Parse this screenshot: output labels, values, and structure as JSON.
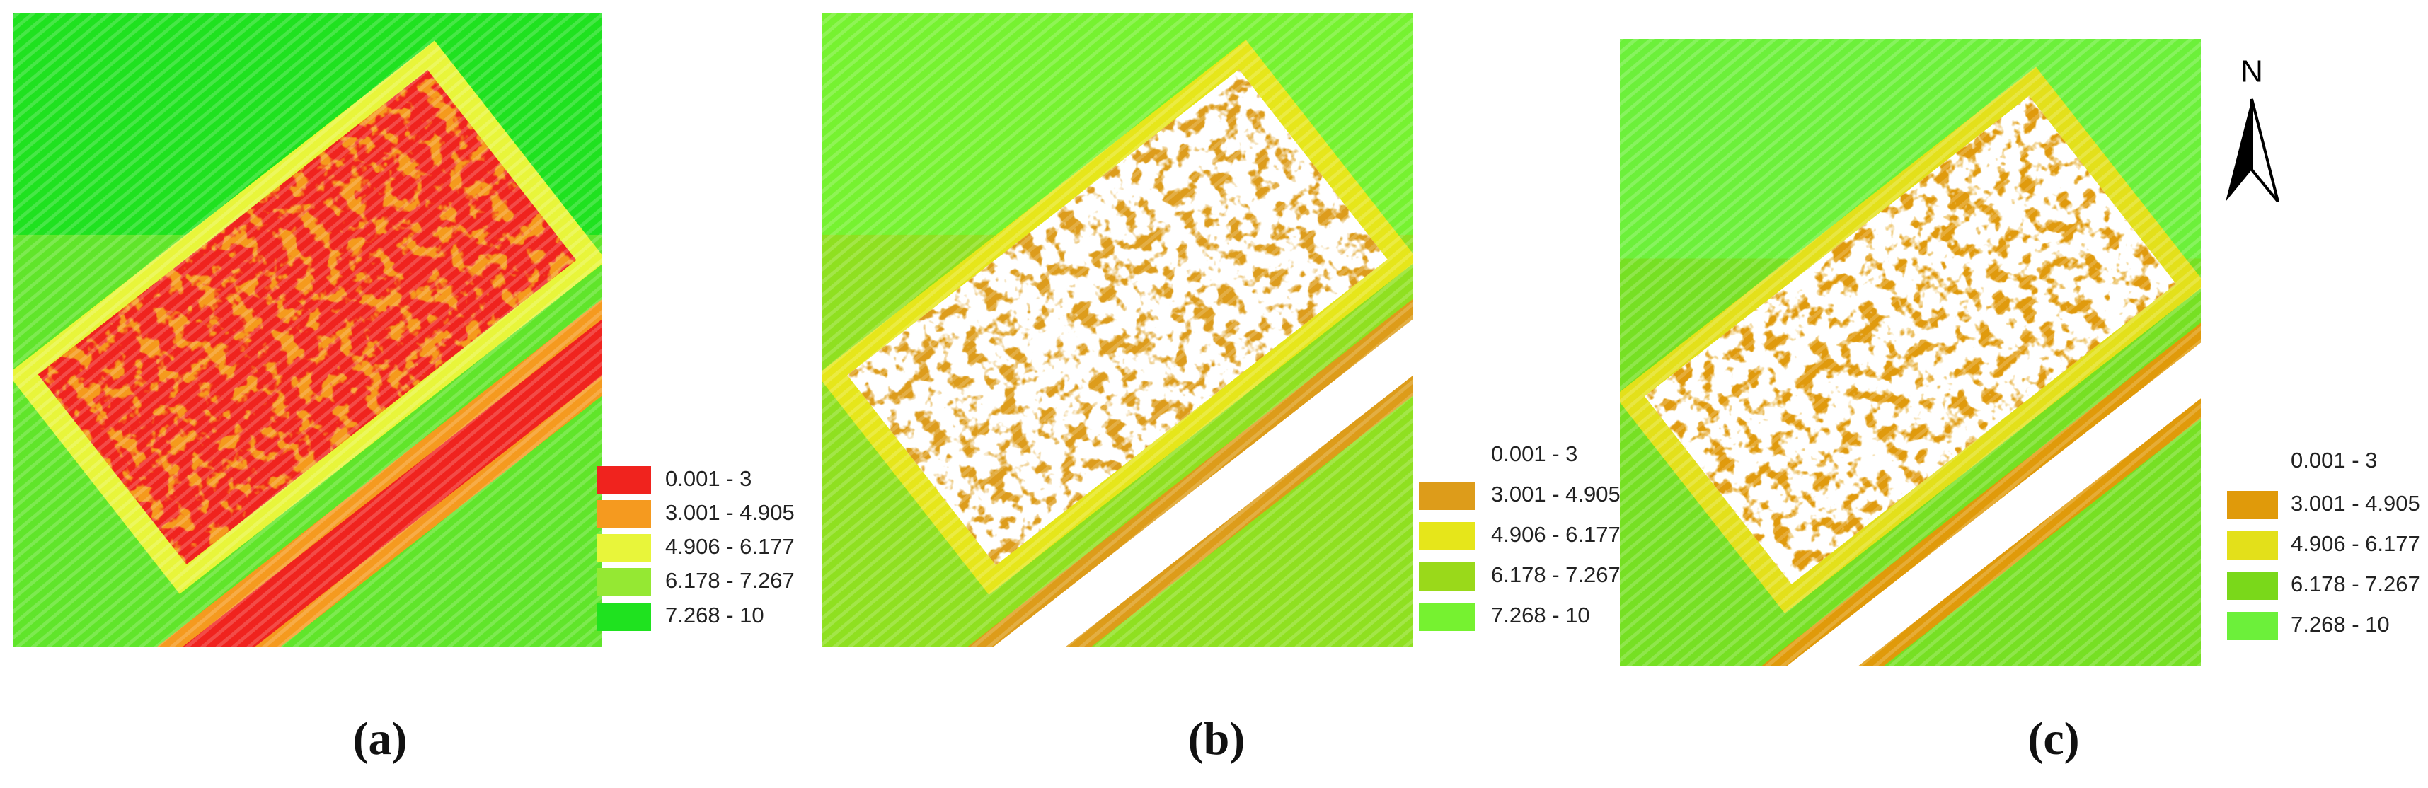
{
  "panels": [
    {
      "caption": "(a)",
      "legend": [
        {
          "label": "0.001 - 3",
          "color": "#f0231e"
        },
        {
          "label": "3.001 - 4.905",
          "color": "#f59a1f"
        },
        {
          "label": "4.906 - 6.177",
          "color": "#e8f53a"
        },
        {
          "label": "6.178 - 7.267",
          "color": "#95e833"
        },
        {
          "label": "7.268 - 10",
          "color": "#1fe21f"
        }
      ]
    },
    {
      "caption": "(b)",
      "legend": [
        {
          "label": "0.001 - 3",
          "color": "#ffffff"
        },
        {
          "label": "3.001 - 4.905",
          "color": "#dd9c1a"
        },
        {
          "label": "4.906 - 6.177",
          "color": "#e6e61a"
        },
        {
          "label": "6.178 - 7.267",
          "color": "#9ad91a"
        },
        {
          "label": "7.268 - 10",
          "color": "#76f230"
        }
      ]
    },
    {
      "caption": "(c)",
      "legend": [
        {
          "label": "0.001 - 3",
          "color": "#ffffff"
        },
        {
          "label": "3.001 - 4.905",
          "color": "#e09a0a"
        },
        {
          "label": "4.906 - 6.177",
          "color": "#e3e01a"
        },
        {
          "label": "6.178 - 7.267",
          "color": "#7ad81a"
        },
        {
          "label": "7.268 - 10",
          "color": "#6cf03a"
        }
      ]
    }
  ],
  "north_arrow": {
    "label": "N"
  }
}
